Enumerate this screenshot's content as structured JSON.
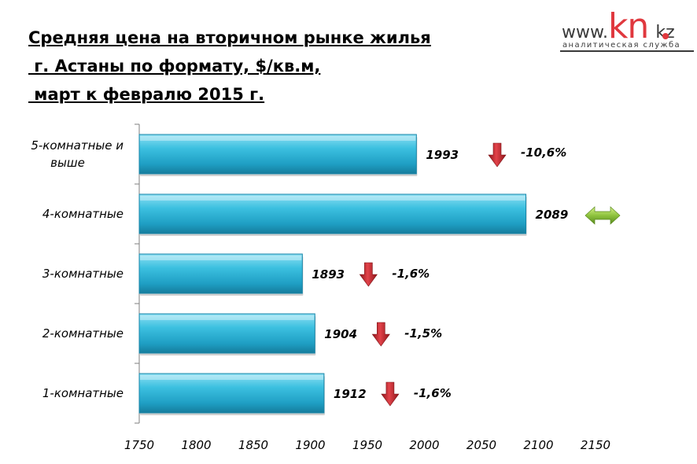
{
  "header": {
    "title_lines": [
      "Средняя цена на вторичном рынке жилья",
      " г. Астаны по формату, $/кв.м,",
      " март к февралю 2015 г."
    ]
  },
  "logo": {
    "www": "www.",
    "kn": "kn",
    "kz": "kz",
    "subtitle": "аналитическая служба"
  },
  "chart_data": {
    "type": "bar",
    "orientation": "horizontal",
    "categories": [
      [
        "5-комнатные и",
        "выше"
      ],
      [
        "4-комнатные"
      ],
      [
        "3-комнатные"
      ],
      [
        "2-комнатные"
      ],
      [
        "1-комнатные"
      ]
    ],
    "values": [
      1993,
      2089,
      1893,
      1904,
      1912
    ],
    "value_labels": [
      "1993",
      "2089",
      "1893",
      "1904",
      "1912"
    ],
    "changes": [
      "-10,6%",
      "",
      "-1,6%",
      "-1,5%",
      "-1,6%"
    ],
    "change_icons": [
      "down-arrow-icon",
      "left-right-arrow-icon",
      "down-arrow-icon",
      "down-arrow-icon",
      "down-arrow-icon"
    ],
    "xlim": [
      1750,
      2150
    ],
    "xticks": [
      1750,
      1800,
      1850,
      1900,
      1950,
      2000,
      2050,
      2100,
      2150
    ],
    "tick_labels": [
      "1750",
      "1800",
      "1850",
      "1900",
      "1950",
      "2000",
      "2050",
      "2100",
      "2150"
    ],
    "bar_color": "#2fb3d5",
    "down_color": "#c8252c",
    "neutral_color": "#8ec33d",
    "grid": false
  }
}
